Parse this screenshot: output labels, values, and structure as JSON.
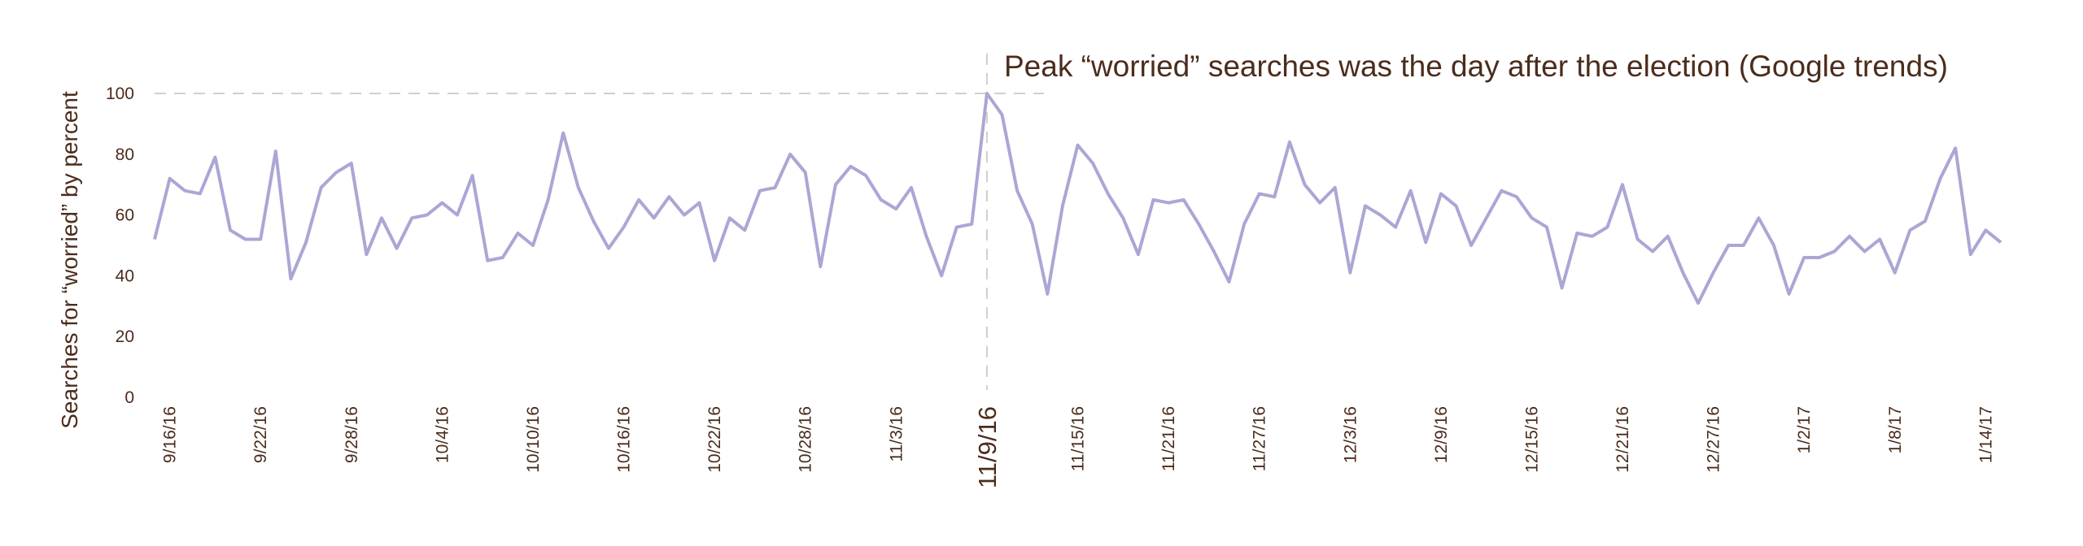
{
  "chart_data": {
    "type": "line",
    "title": "Peak “worried” searches was the day after the election (Google trends)",
    "y_label": "Searches for “worried” by percent",
    "categories": [
      null,
      "9/16/16",
      null,
      null,
      null,
      null,
      null,
      "9/22/16",
      null,
      null,
      null,
      null,
      null,
      "9/28/16",
      null,
      null,
      null,
      null,
      null,
      "10/4/16",
      null,
      null,
      null,
      null,
      null,
      "10/10/16",
      null,
      null,
      null,
      null,
      null,
      "10/16/16",
      null,
      null,
      null,
      null,
      null,
      "10/22/16",
      null,
      null,
      null,
      null,
      null,
      "10/28/16",
      null,
      null,
      null,
      null,
      null,
      "11/3/16",
      null,
      null,
      null,
      null,
      null,
      "11/9/16",
      null,
      null,
      null,
      null,
      null,
      "11/15/16",
      null,
      null,
      null,
      null,
      null,
      "11/21/16",
      null,
      null,
      null,
      null,
      null,
      "11/27/16",
      null,
      null,
      null,
      null,
      null,
      "12/3/16",
      null,
      null,
      null,
      null,
      null,
      "12/9/16",
      null,
      null,
      null,
      null,
      null,
      "12/15/16",
      null,
      null,
      null,
      null,
      null,
      "12/21/16",
      null,
      null,
      null,
      null,
      null,
      "12/27/16",
      null,
      null,
      null,
      null,
      null,
      "1/2/17",
      null,
      null,
      null,
      null,
      null,
      "1/8/17",
      null,
      null,
      null,
      null,
      null,
      "1/14/17",
      null
    ],
    "values": [
      52,
      72,
      68,
      67,
      79,
      55,
      52,
      52,
      81,
      39,
      51,
      69,
      74,
      77,
      47,
      59,
      49,
      59,
      60,
      64,
      60,
      73,
      45,
      46,
      54,
      50,
      65,
      87,
      69,
      58,
      49,
      56,
      65,
      59,
      66,
      60,
      64,
      45,
      59,
      55,
      68,
      69,
      80,
      74,
      43,
      70,
      76,
      73,
      65,
      62,
      69,
      53,
      40,
      56,
      57,
      100,
      93,
      68,
      57,
      34,
      63,
      83,
      77,
      67,
      59,
      47,
      65,
      64,
      65,
      57,
      48,
      38,
      57,
      67,
      66,
      84,
      70,
      64,
      69,
      41,
      63,
      60,
      56,
      68,
      51,
      67,
      63,
      50,
      59,
      68,
      66,
      59,
      56,
      36,
      54,
      53,
      56,
      70,
      52,
      48,
      53,
      41,
      31,
      41,
      50,
      50,
      59,
      50,
      34,
      46,
      46,
      48,
      53,
      48,
      52,
      41,
      55,
      58,
      72,
      82,
      47,
      55,
      51
    ],
    "color": "#aaa7d5",
    "ylim": [
      0,
      100
    ],
    "yticks": [
      0,
      20,
      40,
      60,
      80,
      100
    ]
  }
}
